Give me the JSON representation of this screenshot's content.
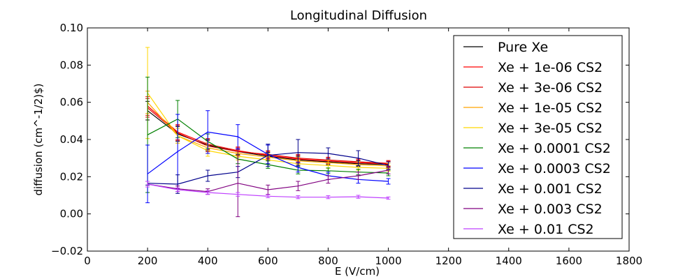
{
  "chart_data": {
    "type": "line",
    "title": "Longitudinal Diffusion",
    "xlabel": "E (V/cm)",
    "ylabel": "diffusion (cm^-1/2)$)",
    "xlim": [
      0,
      1800
    ],
    "ylim": [
      -0.02,
      0.1
    ],
    "xticks": [
      0,
      200,
      400,
      600,
      800,
      1000,
      1200,
      1400,
      1600,
      1800
    ],
    "yticks": [
      -0.02,
      0.0,
      0.02,
      0.04,
      0.06,
      0.08,
      0.1
    ],
    "xtick_labels": [
      "0",
      "200",
      "400",
      "600",
      "800",
      "1000",
      "1200",
      "1400",
      "1600",
      "1800"
    ],
    "ytick_labels": [
      "−0.02",
      "0.00",
      "0.02",
      "0.04",
      "0.06",
      "0.08",
      "0.10"
    ],
    "grid": false,
    "legend_position": "top-right",
    "x": [
      200,
      300,
      400,
      500,
      600,
      700,
      800,
      900,
      1000
    ],
    "series": [
      {
        "name": "Pure Xe",
        "color": "#000000",
        "values": [
          0.0555,
          0.043,
          0.037,
          0.0335,
          0.031,
          0.029,
          0.028,
          0.027,
          0.0265
        ],
        "errors": [
          0.005,
          0.004,
          0.003,
          0.002,
          0.002,
          0.002,
          0.0015,
          0.0015,
          0.0015
        ]
      },
      {
        "name": "Xe + 1e-06 CS2",
        "color": "#ff0000",
        "values": [
          0.058,
          0.044,
          0.0375,
          0.034,
          0.0315,
          0.0295,
          0.0285,
          0.0275,
          0.0268
        ],
        "errors": [
          0.005,
          0.004,
          0.003,
          0.002,
          0.002,
          0.002,
          0.0015,
          0.0015,
          0.0015
        ]
      },
      {
        "name": "Xe + 3e-06 CS2",
        "color": "#dd0000",
        "values": [
          0.057,
          0.0435,
          0.0365,
          0.0335,
          0.032,
          0.03,
          0.029,
          0.028,
          0.0272
        ],
        "errors": [
          0.005,
          0.004,
          0.003,
          0.002,
          0.002,
          0.002,
          0.0015,
          0.0015,
          0.0015
        ]
      },
      {
        "name": "Xe + 1e-05 CS2",
        "color": "#ffa500",
        "values": [
          0.06,
          0.042,
          0.0355,
          0.0325,
          0.0305,
          0.0285,
          0.0275,
          0.0265,
          0.0258
        ],
        "errors": [
          0.006,
          0.004,
          0.003,
          0.002,
          0.002,
          0.002,
          0.0015,
          0.0015,
          0.0015
        ]
      },
      {
        "name": "Xe + 3e-05 CS2",
        "color": "#ffd700",
        "values": [
          0.065,
          0.042,
          0.034,
          0.031,
          0.029,
          0.027,
          0.026,
          0.025,
          0.0245
        ],
        "errors": [
          0.0245,
          0.004,
          0.003,
          0.002,
          0.002,
          0.002,
          0.0015,
          0.0015,
          0.0015
        ]
      },
      {
        "name": "Xe + 0.0001 CS2",
        "color": "#008000",
        "values": [
          0.0425,
          0.051,
          0.039,
          0.0295,
          0.0265,
          0.0235,
          0.0232,
          0.0225,
          0.022
        ],
        "errors": [
          0.031,
          0.01,
          0.004,
          0.0025,
          0.002,
          0.002,
          0.0015,
          0.0015,
          0.0015
        ]
      },
      {
        "name": "Xe + 0.0003 CS2",
        "color": "#0000ff",
        "values": [
          0.0215,
          0.0335,
          0.044,
          0.0415,
          0.032,
          0.025,
          0.0205,
          0.0185,
          0.0175
        ],
        "errors": [
          0.0155,
          0.02,
          0.0115,
          0.0065,
          0.005,
          0.0025,
          0.002,
          0.002,
          0.0015
        ]
      },
      {
        "name": "Xe + 0.001 CS2",
        "color": "#00008b",
        "values": [
          0.0165,
          0.016,
          0.0205,
          0.0225,
          0.0315,
          0.033,
          0.0325,
          0.03,
          0.026
        ],
        "errors": [
          0.001,
          0.005,
          0.003,
          0.003,
          0.006,
          0.007,
          0.003,
          0.004,
          0.002
        ]
      },
      {
        "name": "Xe + 0.003 CS2",
        "color": "#800080",
        "values": [
          0.016,
          0.0135,
          0.012,
          0.0165,
          0.013,
          0.015,
          0.0185,
          0.0205,
          0.0235
        ],
        "errors": [
          0.0015,
          0.0015,
          0.0015,
          0.018,
          0.0025,
          0.0025,
          0.002,
          0.002,
          0.002
        ]
      },
      {
        "name": "Xe + 0.01 CS2",
        "color": "#bf40ff",
        "values": [
          0.016,
          0.013,
          0.0115,
          0.0105,
          0.0095,
          0.009,
          0.009,
          0.0092,
          0.0085
        ],
        "errors": [
          0.0015,
          0.001,
          0.001,
          0.001,
          0.0008,
          0.0008,
          0.0008,
          0.0008,
          0.0006
        ]
      }
    ]
  }
}
